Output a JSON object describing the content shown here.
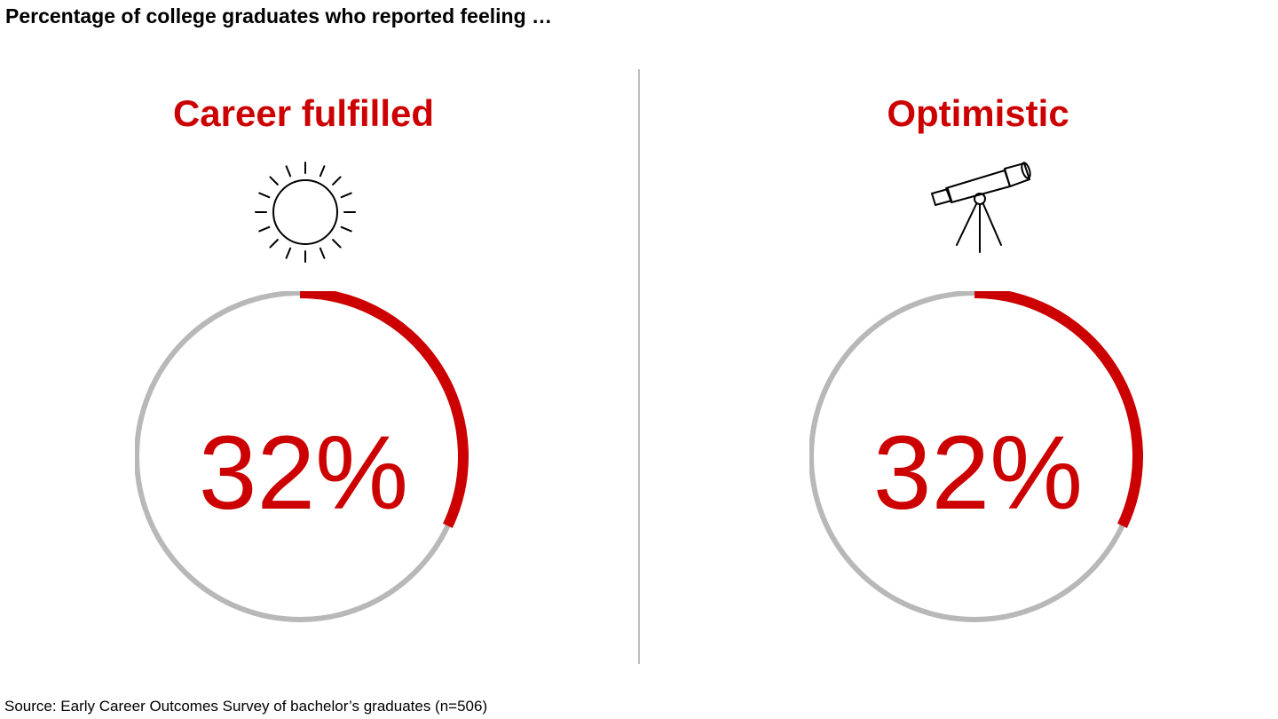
{
  "title": "Percentage of college graduates who reported feeling …",
  "source": "Source: Early Career Outcomes Survey of bachelor’s graduates (n=506)",
  "colors": {
    "accent": "#cc0000",
    "track": "#b8b8b8",
    "divider": "#bdbdbd",
    "text": "#000000"
  },
  "chart_data": [
    {
      "type": "pie",
      "title": "Career fulfilled",
      "icon": "sun-icon",
      "value": 32,
      "value_label": "32%",
      "max": 100
    },
    {
      "type": "pie",
      "title": "Optimistic",
      "icon": "telescope-icon",
      "value": 32,
      "value_label": "32%",
      "max": 100
    }
  ]
}
